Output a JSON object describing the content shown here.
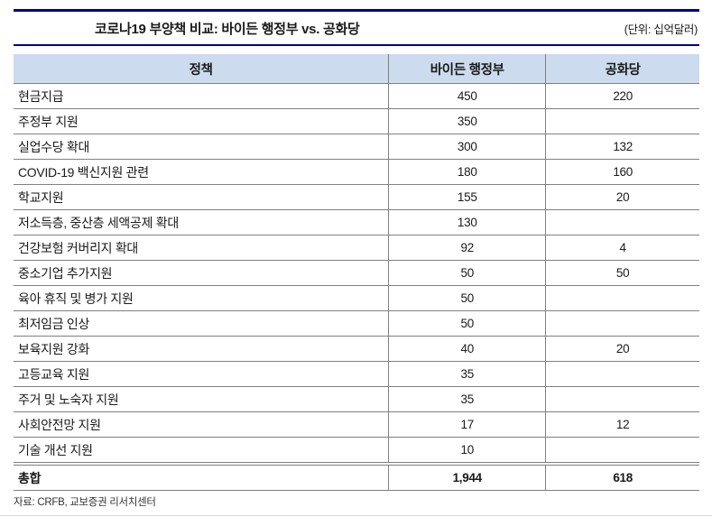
{
  "title": {
    "text": "코로나19 부양책 비교: 바이든 행정부 vs. 공화당",
    "unit_label": "(단위: 십억달러)"
  },
  "table": {
    "columns": [
      "정책",
      "바이든 행정부",
      "공화당"
    ],
    "rows": [
      {
        "policy": "현금지급",
        "biden": "450",
        "gop": "220"
      },
      {
        "policy": "주정부 지원",
        "biden": "350",
        "gop": ""
      },
      {
        "policy": "실업수당 확대",
        "biden": "300",
        "gop": "132"
      },
      {
        "policy": "COVID-19 백신지원 관련",
        "biden": "180",
        "gop": "160"
      },
      {
        "policy": "학교지원",
        "biden": "155",
        "gop": "20"
      },
      {
        "policy": "저소득층, 중산층 세액공제 확대",
        "biden": "130",
        "gop": ""
      },
      {
        "policy": "건강보험 커버리지 확대",
        "biden": "92",
        "gop": "4"
      },
      {
        "policy": "중소기업 추가지원",
        "biden": "50",
        "gop": "50"
      },
      {
        "policy": "육아 휴직 및 병가 지원",
        "biden": "50",
        "gop": ""
      },
      {
        "policy": "최저임금 인상",
        "biden": "50",
        "gop": ""
      },
      {
        "policy": "보육지원 강화",
        "biden": "40",
        "gop": "20"
      },
      {
        "policy": "고등교육 지원",
        "biden": "35",
        "gop": ""
      },
      {
        "policy": "주거 및 노숙자 지원",
        "biden": "35",
        "gop": ""
      },
      {
        "policy": "사회안전망 지원",
        "biden": "17",
        "gop": "12"
      },
      {
        "policy": "기술 개선 지원",
        "biden": "10",
        "gop": ""
      },
      {
        "policy": "총합",
        "biden": "1,944",
        "gop": "618",
        "total": true
      }
    ]
  },
  "footer": {
    "source": "자료: CRFB, 교보증권 리서치센터"
  },
  "colors": {
    "accent_line": "#00008b",
    "header_bg": "#ccdbee",
    "row_border": "#808080",
    "page_divider": "#d9d9d9"
  },
  "chart_data": {
    "type": "table",
    "title": "코로나19 부양책 비교: 바이든 행정부 vs. 공화당",
    "unit": "십억달러",
    "columns": [
      "정책",
      "바이든 행정부",
      "공화당"
    ],
    "categories": [
      "현금지급",
      "주정부 지원",
      "실업수당 확대",
      "COVID-19 백신지원 관련",
      "학교지원",
      "저소득층, 중산층 세액공제 확대",
      "건강보험 커버리지 확대",
      "중소기업 추가지원",
      "육아 휴직 및 병가 지원",
      "최저임금 인상",
      "보육지원 강화",
      "고등교육 지원",
      "주거 및 노숙자 지원",
      "사회안전망 지원",
      "기술 개선 지원"
    ],
    "series": [
      {
        "name": "바이든 행정부",
        "values": [
          450,
          350,
          300,
          180,
          155,
          130,
          92,
          50,
          50,
          50,
          40,
          35,
          35,
          17,
          10
        ],
        "total": 1944
      },
      {
        "name": "공화당",
        "values": [
          220,
          null,
          132,
          160,
          20,
          null,
          4,
          50,
          null,
          null,
          20,
          null,
          null,
          12,
          null
        ],
        "total": 618
      }
    ],
    "total_row_label": "총합",
    "source": "자료: CRFB, 교보증권 리서치센터"
  }
}
